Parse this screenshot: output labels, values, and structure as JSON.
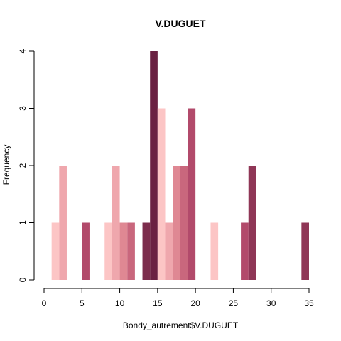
{
  "chart_data": {
    "type": "bar",
    "title": "V.DUGUET",
    "xlabel": "Bondy_autrement$V.DUGUET",
    "ylabel": "Frequency",
    "xlim": [
      0,
      35
    ],
    "ylim": [
      0,
      4
    ],
    "x_ticks": [
      "0",
      "5",
      "10",
      "15",
      "20",
      "25",
      "30",
      "35"
    ],
    "y_ticks": [
      "0",
      "1",
      "2",
      "3",
      "4"
    ],
    "grid": false,
    "bins": [
      {
        "x0": 1,
        "x1": 2,
        "value": 1,
        "color": "#fcc5c5"
      },
      {
        "x0": 2,
        "x1": 3,
        "value": 2,
        "color": "#efa7ad"
      },
      {
        "x0": 5,
        "x1": 6,
        "value": 1,
        "color": "#b24a6b"
      },
      {
        "x0": 8,
        "x1": 9,
        "value": 1,
        "color": "#fcc5c5"
      },
      {
        "x0": 9,
        "x1": 10,
        "value": 2,
        "color": "#efa7ad"
      },
      {
        "x0": 10,
        "x1": 11,
        "value": 1,
        "color": "#df8893"
      },
      {
        "x0": 11,
        "x1": 12,
        "value": 1,
        "color": "#c9677d"
      },
      {
        "x0": 13,
        "x1": 14,
        "value": 1,
        "color": "#7c2c4c"
      },
      {
        "x0": 14,
        "x1": 15,
        "value": 4,
        "color": "#6a2142"
      },
      {
        "x0": 15,
        "x1": 16,
        "value": 3,
        "color": "#fcc5c5"
      },
      {
        "x0": 16,
        "x1": 17,
        "value": 1,
        "color": "#efa7ad"
      },
      {
        "x0": 17,
        "x1": 18,
        "value": 2,
        "color": "#df8893"
      },
      {
        "x0": 18,
        "x1": 19,
        "value": 2,
        "color": "#c9677d"
      },
      {
        "x0": 19,
        "x1": 20,
        "value": 3,
        "color": "#b24a6b"
      },
      {
        "x0": 22,
        "x1": 23,
        "value": 1,
        "color": "#fcc5c5"
      },
      {
        "x0": 26,
        "x1": 27,
        "value": 1,
        "color": "#b24a6b"
      },
      {
        "x0": 27,
        "x1": 28,
        "value": 2,
        "color": "#8f3656"
      },
      {
        "x0": 34,
        "x1": 35,
        "value": 1,
        "color": "#8f3656"
      }
    ]
  }
}
